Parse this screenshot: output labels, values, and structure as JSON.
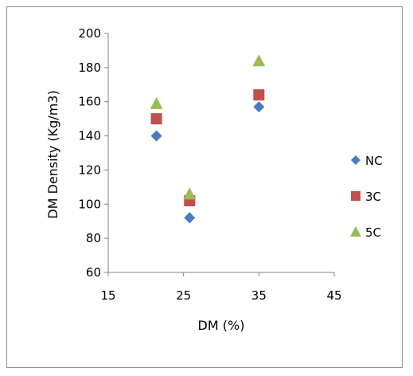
{
  "chart_data": {
    "type": "scatter",
    "title": "",
    "xlabel": "DM (%)",
    "ylabel": "DM Density (Kg/m3)",
    "xlim": [
      15,
      45
    ],
    "ylim": [
      60,
      200
    ],
    "xticks": [
      15,
      25,
      35,
      45
    ],
    "yticks": [
      60,
      80,
      100,
      120,
      140,
      160,
      180,
      200
    ],
    "grid": false,
    "legend_position": "right",
    "series": [
      {
        "name": "NC",
        "marker": "diamond",
        "color": "#4a7ac0",
        "points": [
          {
            "x": 21.4,
            "y": 140
          },
          {
            "x": 25.8,
            "y": 92
          },
          {
            "x": 35.0,
            "y": 157
          }
        ]
      },
      {
        "name": "3C",
        "marker": "square",
        "color": "#c0504d",
        "points": [
          {
            "x": 21.4,
            "y": 150
          },
          {
            "x": 25.8,
            "y": 102
          },
          {
            "x": 35.0,
            "y": 164
          }
        ]
      },
      {
        "name": "5C",
        "marker": "triangle",
        "color": "#9bbb59",
        "points": [
          {
            "x": 21.4,
            "y": 159
          },
          {
            "x": 25.8,
            "y": 106
          },
          {
            "x": 35.0,
            "y": 184
          }
        ]
      }
    ]
  }
}
